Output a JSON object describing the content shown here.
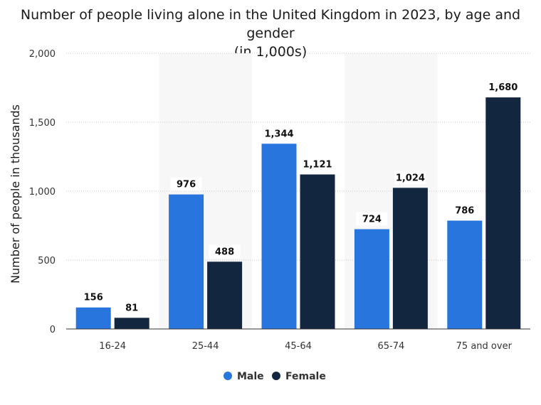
{
  "chart_data": {
    "type": "bar",
    "title": "Number of people living alone in the United Kingdom in 2023, by age and gender",
    "subtitle": "(in 1,000s)",
    "xlabel": "",
    "ylabel": "Number of people in thousands",
    "ylim": [
      0,
      2000
    ],
    "yticks": [
      0,
      500,
      1000,
      1500,
      2000
    ],
    "ytick_labels": [
      "0",
      "500",
      "1,000",
      "1,500",
      "2,000"
    ],
    "categories": [
      "16-24",
      "25-44",
      "45-64",
      "65-74",
      "75 and over"
    ],
    "series": [
      {
        "name": "Male",
        "color": "#2876dd",
        "values": [
          156,
          976,
          1344,
          724,
          786
        ],
        "labels": [
          "156",
          "976",
          "1,344",
          "724",
          "786"
        ]
      },
      {
        "name": "Female",
        "color": "#12263f",
        "values": [
          81,
          488,
          1121,
          1024,
          1680
        ],
        "labels": [
          "81",
          "488",
          "1,121",
          "1,024",
          "1,680"
        ]
      }
    ],
    "grid": true,
    "legend": "bottom-center"
  }
}
